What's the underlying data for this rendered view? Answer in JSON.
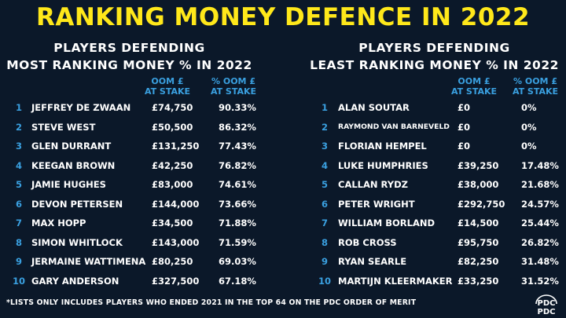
{
  "title": "RANKING MONEY DEFENCE IN 2022",
  "left": {
    "heading_line1": "PLAYERS DEFENDING",
    "heading_line2": "MOST RANKING MONEY % IN 2022",
    "col_money_line1": "OOM £",
    "col_money_line2": "AT STAKE",
    "col_pct_line1": "% OOM £",
    "col_pct_line2": "AT STAKE",
    "rows": [
      {
        "rank": "1",
        "name": "JEFFREY DE ZWAAN",
        "money": "£74,750",
        "pct": "90.33%"
      },
      {
        "rank": "2",
        "name": "STEVE WEST",
        "money": "£50,500",
        "pct": "86.32%"
      },
      {
        "rank": "3",
        "name": "GLEN DURRANT",
        "money": "£131,250",
        "pct": "77.43%"
      },
      {
        "rank": "4",
        "name": "KEEGAN BROWN",
        "money": "£42,250",
        "pct": "76.82%"
      },
      {
        "rank": "5",
        "name": "JAMIE HUGHES",
        "money": "£83,000",
        "pct": "74.61%"
      },
      {
        "rank": "6",
        "name": "DEVON PETERSEN",
        "money": "£144,000",
        "pct": "73.66%"
      },
      {
        "rank": "7",
        "name": "MAX HOPP",
        "money": "£34,500",
        "pct": "71.88%"
      },
      {
        "rank": "8",
        "name": "SIMON WHITLOCK",
        "money": "£143,000",
        "pct": "71.59%"
      },
      {
        "rank": "9",
        "name": "JERMAINE WATTIMENA",
        "money": "£80,250",
        "pct": "69.03%"
      },
      {
        "rank": "10",
        "name": "GARY ANDERSON",
        "money": "£327,500",
        "pct": "67.18%"
      }
    ]
  },
  "right": {
    "heading_line1": "PLAYERS DEFENDING",
    "heading_line2": "LEAST RANKING MONEY % IN 2022",
    "col_money_line1": "OOM £",
    "col_money_line2": "AT STAKE",
    "col_pct_line1": "% OOM £",
    "col_pct_line2": "AT STAKE",
    "rows": [
      {
        "rank": "1",
        "name": "ALAN SOUTAR",
        "money": "£0",
        "pct": "0%"
      },
      {
        "rank": "2",
        "name": "RAYMOND VAN BARNEVELD",
        "money": "£0",
        "pct": "0%",
        "small": true
      },
      {
        "rank": "3",
        "name": "FLORIAN HEMPEL",
        "money": "£0",
        "pct": "0%"
      },
      {
        "rank": "4",
        "name": "LUKE HUMPHRIES",
        "money": "£39,250",
        "pct": "17.48%"
      },
      {
        "rank": "5",
        "name": "CALLAN RYDZ",
        "money": "£38,000",
        "pct": "21.68%"
      },
      {
        "rank": "6",
        "name": "PETER WRIGHT",
        "money": "£292,750",
        "pct": "24.57%"
      },
      {
        "rank": "7",
        "name": "WILLIAM BORLAND",
        "money": "£14,500",
        "pct": "25.44%"
      },
      {
        "rank": "8",
        "name": "ROB CROSS",
        "money": "£95,750",
        "pct": "26.82%"
      },
      {
        "rank": "9",
        "name": "RYAN SEARLE",
        "money": "£82,250",
        "pct": "31.48%"
      },
      {
        "rank": "10",
        "name": "MARTIJN KLEERMAKER",
        "money": "£33,250",
        "pct": "31.52%"
      }
    ]
  },
  "footnote": "*LISTS ONLY INCLUDES PLAYERS WHO ENDED 2021 IN THE TOP 64 ON THE PDC ORDER OF MERIT",
  "logo_text": "PDC",
  "colors": {
    "background": "#0b1829",
    "title": "#ffe81a",
    "accent": "#3aa0e0",
    "text": "#ffffff"
  }
}
